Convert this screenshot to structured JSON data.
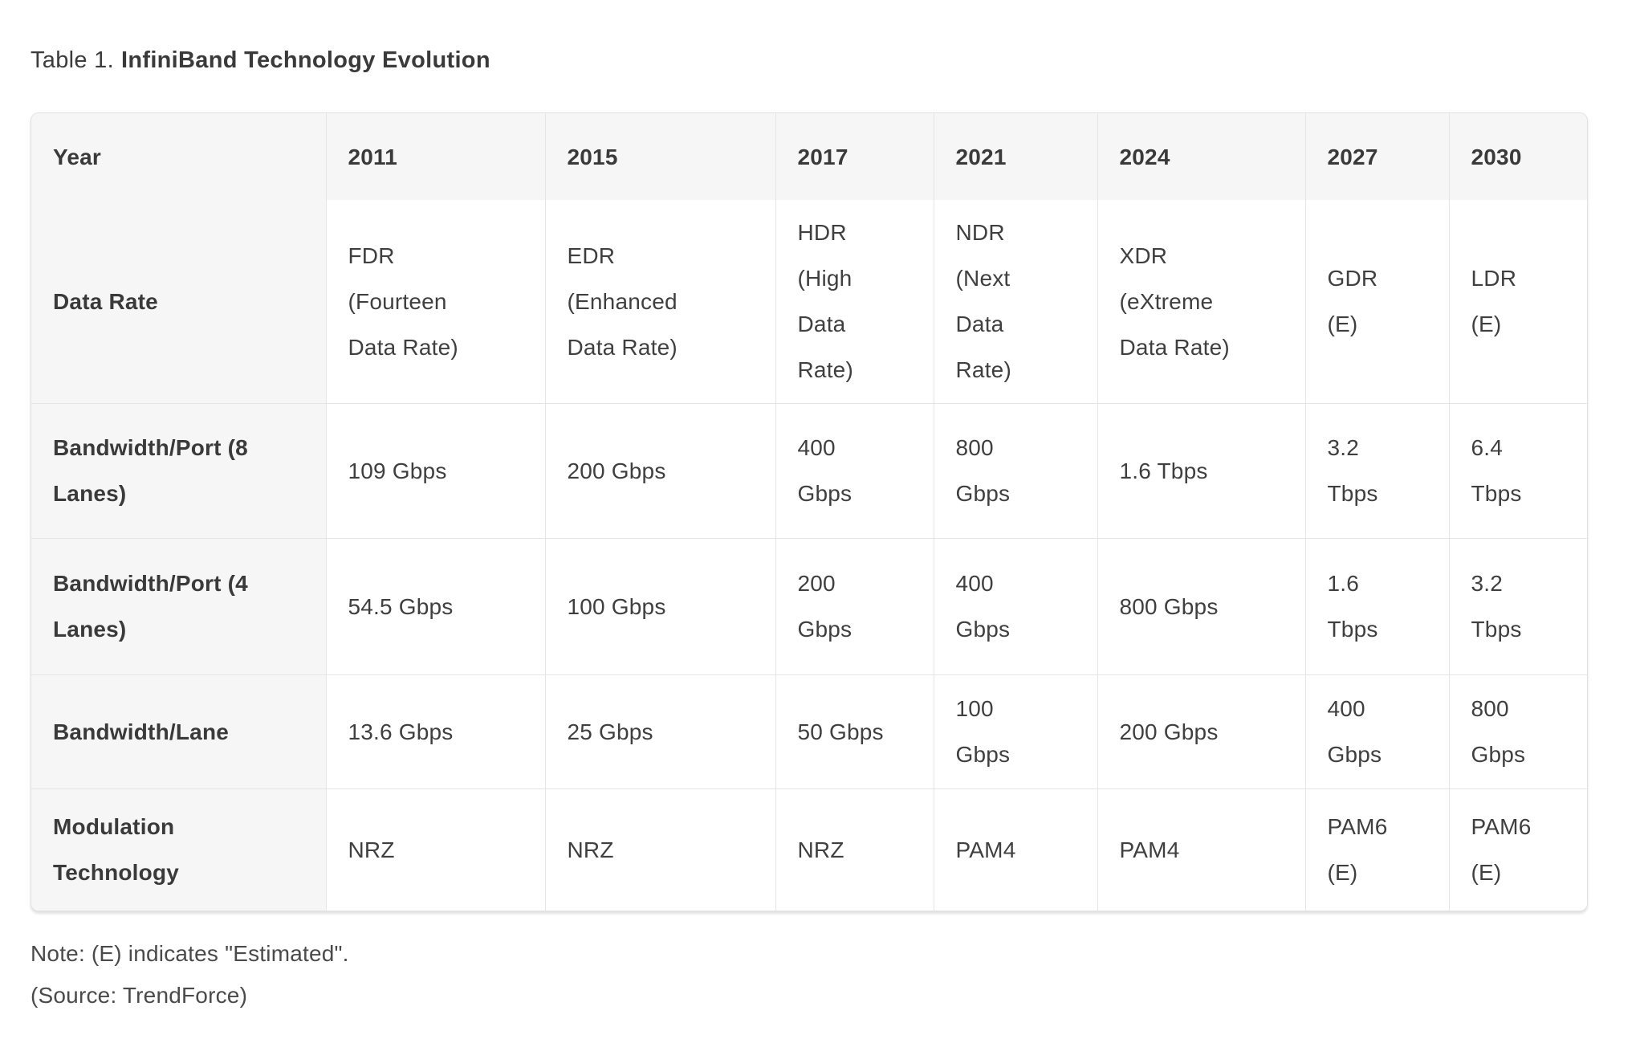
{
  "title": {
    "prefix": "Table 1.",
    "main": "InfiniBand Technology Evolution"
  },
  "table": {
    "header": [
      "Year",
      "2011",
      "2015",
      "2017",
      "2021",
      "2024",
      "2027",
      "2030"
    ],
    "rows": [
      {
        "label": "Data Rate",
        "cells": [
          "FDR\n(Fourteen\nData Rate)",
          "EDR\n(Enhanced\nData Rate)",
          "HDR\n(High\nData\nRate)",
          "NDR\n(Next\nData\nRate)",
          "XDR\n(eXtreme\nData Rate)",
          "GDR\n(E)",
          "LDR\n(E)"
        ]
      },
      {
        "label": "Bandwidth/Port (8\nLanes)",
        "cells": [
          "109 Gbps",
          "200 Gbps",
          "400\nGbps",
          "800\nGbps",
          "1.6 Tbps",
          "3.2\nTbps",
          "6.4\nTbps"
        ]
      },
      {
        "label": "Bandwidth/Port (4\nLanes)",
        "cells": [
          "54.5 Gbps",
          "100 Gbps",
          "200\nGbps",
          "400\nGbps",
          "800 Gbps",
          "1.6\nTbps",
          "3.2\nTbps"
        ]
      },
      {
        "label": "Bandwidth/Lane",
        "cells": [
          "13.6 Gbps",
          "25 Gbps",
          "50 Gbps",
          "100\nGbps",
          "200 Gbps",
          "400\nGbps",
          "800\nGbps"
        ]
      },
      {
        "label": "Modulation\nTechnology",
        "cells": [
          "NRZ",
          "NRZ",
          "NRZ",
          "PAM4",
          "PAM4",
          "PAM6\n(E)",
          "PAM6\n(E)"
        ]
      }
    ]
  },
  "notes": [
    "Note: (E) indicates \"Estimated\".",
    "(Source: TrendForce)"
  ],
  "colors": {
    "header_background": "#f6f6f7",
    "cell_border": "#e5e5e7",
    "text": "#3f3f3f"
  }
}
